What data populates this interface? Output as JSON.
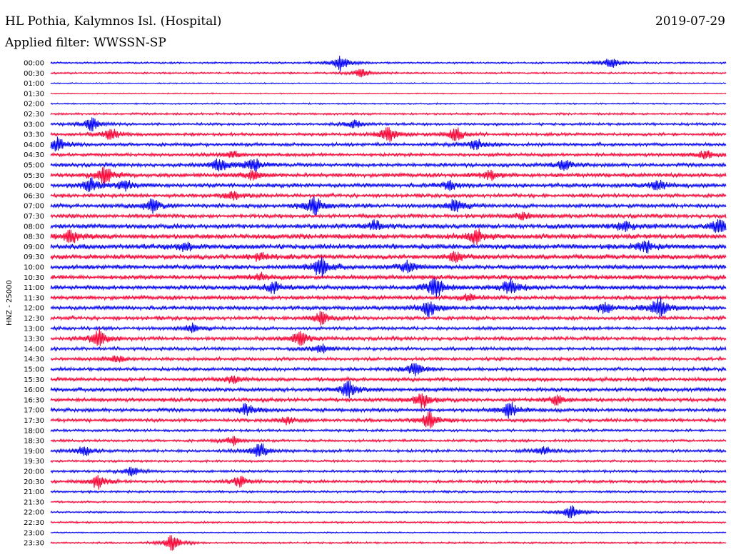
{
  "chart_data": {
    "type": "line",
    "title": "HL Pothia, Kalymnos Isl. (Hospital)",
    "date": "2019-07-29",
    "filter_label": "Applied filter: WWSSN-SP",
    "ylabel": "HNZ - 25000",
    "colors": {
      "blue": "#0000ff",
      "red": "#ff0033"
    },
    "rows": [
      {
        "label": "00:00",
        "color": "blue",
        "amp": 1.0,
        "events": [
          [
            0.43,
            1.0
          ],
          [
            0.83,
            0.7
          ]
        ]
      },
      {
        "label": "00:30",
        "color": "red",
        "amp": 1.0,
        "events": [
          [
            0.46,
            0.5
          ]
        ]
      },
      {
        "label": "01:00",
        "color": "blue",
        "amp": 0.6,
        "events": []
      },
      {
        "label": "01:30",
        "color": "red",
        "amp": 0.6,
        "events": []
      },
      {
        "label": "02:00",
        "color": "blue",
        "amp": 0.8,
        "events": []
      },
      {
        "label": "02:30",
        "color": "red",
        "amp": 1.2,
        "events": []
      },
      {
        "label": "03:00",
        "color": "blue",
        "amp": 1.4,
        "events": [
          [
            0.06,
            0.8
          ],
          [
            0.45,
            0.5
          ]
        ]
      },
      {
        "label": "03:30",
        "color": "red",
        "amp": 1.6,
        "events": [
          [
            0.09,
            0.7
          ],
          [
            0.5,
            0.9
          ],
          [
            0.6,
            0.8
          ]
        ]
      },
      {
        "label": "04:00",
        "color": "blue",
        "amp": 1.8,
        "events": [
          [
            0.01,
            0.8
          ],
          [
            0.63,
            0.6
          ]
        ]
      },
      {
        "label": "04:30",
        "color": "red",
        "amp": 1.8,
        "events": [
          [
            0.27,
            0.4
          ],
          [
            0.97,
            0.5
          ]
        ]
      },
      {
        "label": "05:00",
        "color": "blue",
        "amp": 2.0,
        "events": [
          [
            0.25,
            0.7
          ],
          [
            0.3,
            0.8
          ],
          [
            0.76,
            0.6
          ]
        ]
      },
      {
        "label": "05:30",
        "color": "red",
        "amp": 2.2,
        "events": [
          [
            0.08,
            1.0
          ],
          [
            0.3,
            0.6
          ],
          [
            0.65,
            0.5
          ]
        ]
      },
      {
        "label": "06:00",
        "color": "blue",
        "amp": 2.2,
        "events": [
          [
            0.06,
            0.8
          ],
          [
            0.11,
            0.6
          ],
          [
            0.59,
            0.5
          ],
          [
            0.9,
            0.6
          ]
        ]
      },
      {
        "label": "06:30",
        "color": "red",
        "amp": 2.0,
        "events": [
          [
            0.27,
            0.5
          ]
        ]
      },
      {
        "label": "07:00",
        "color": "blue",
        "amp": 2.2,
        "events": [
          [
            0.15,
            0.8
          ],
          [
            0.39,
            1.0
          ],
          [
            0.6,
            0.8
          ]
        ]
      },
      {
        "label": "07:30",
        "color": "red",
        "amp": 2.2,
        "events": [
          [
            0.7,
            0.4
          ]
        ]
      },
      {
        "label": "08:00",
        "color": "blue",
        "amp": 2.6,
        "events": [
          [
            0.48,
            0.5
          ],
          [
            0.85,
            0.6
          ],
          [
            0.99,
            0.8
          ]
        ]
      },
      {
        "label": "08:30",
        "color": "red",
        "amp": 2.8,
        "events": [
          [
            0.03,
            0.7
          ],
          [
            0.63,
            0.8
          ]
        ]
      },
      {
        "label": "09:00",
        "color": "blue",
        "amp": 2.8,
        "events": [
          [
            0.2,
            0.5
          ],
          [
            0.88,
            0.6
          ]
        ]
      },
      {
        "label": "09:30",
        "color": "red",
        "amp": 2.6,
        "events": [
          [
            0.31,
            0.4
          ],
          [
            0.6,
            0.5
          ]
        ]
      },
      {
        "label": "10:00",
        "color": "blue",
        "amp": 2.4,
        "events": [
          [
            0.4,
            1.2
          ],
          [
            0.53,
            0.8
          ]
        ]
      },
      {
        "label": "10:30",
        "color": "red",
        "amp": 2.4,
        "events": [
          [
            0.31,
            0.4
          ]
        ]
      },
      {
        "label": "11:00",
        "color": "blue",
        "amp": 2.4,
        "events": [
          [
            0.33,
            0.6
          ],
          [
            0.57,
            1.2
          ],
          [
            0.68,
            0.9
          ]
        ]
      },
      {
        "label": "11:30",
        "color": "red",
        "amp": 2.2,
        "events": [
          [
            0.62,
            0.4
          ]
        ]
      },
      {
        "label": "12:00",
        "color": "blue",
        "amp": 2.2,
        "events": [
          [
            0.56,
            1.0
          ],
          [
            0.82,
            0.6
          ],
          [
            0.9,
            1.2
          ]
        ]
      },
      {
        "label": "12:30",
        "color": "red",
        "amp": 2.0,
        "events": [
          [
            0.4,
            0.7
          ]
        ]
      },
      {
        "label": "13:00",
        "color": "blue",
        "amp": 1.8,
        "events": [
          [
            0.21,
            0.5
          ]
        ]
      },
      {
        "label": "13:30",
        "color": "red",
        "amp": 2.0,
        "events": [
          [
            0.07,
            1.1
          ],
          [
            0.37,
            0.8
          ]
        ]
      },
      {
        "label": "14:00",
        "color": "blue",
        "amp": 1.8,
        "events": [
          [
            0.4,
            0.5
          ]
        ]
      },
      {
        "label": "14:30",
        "color": "red",
        "amp": 1.8,
        "events": [
          [
            0.1,
            0.4
          ]
        ]
      },
      {
        "label": "15:00",
        "color": "blue",
        "amp": 1.8,
        "events": [
          [
            0.54,
            0.9
          ]
        ]
      },
      {
        "label": "15:30",
        "color": "red",
        "amp": 2.0,
        "events": [
          [
            0.27,
            0.4
          ]
        ]
      },
      {
        "label": "16:00",
        "color": "blue",
        "amp": 2.2,
        "events": [
          [
            0.44,
            0.9
          ]
        ]
      },
      {
        "label": "16:30",
        "color": "red",
        "amp": 2.0,
        "events": [
          [
            0.55,
            0.9
          ],
          [
            0.75,
            0.6
          ]
        ]
      },
      {
        "label": "17:00",
        "color": "blue",
        "amp": 2.0,
        "events": [
          [
            0.29,
            0.7
          ],
          [
            0.68,
            0.9
          ]
        ]
      },
      {
        "label": "17:30",
        "color": "red",
        "amp": 1.8,
        "events": [
          [
            0.56,
            0.9
          ],
          [
            0.35,
            0.4
          ]
        ]
      },
      {
        "label": "18:00",
        "color": "blue",
        "amp": 1.4,
        "events": []
      },
      {
        "label": "18:30",
        "color": "red",
        "amp": 1.4,
        "events": [
          [
            0.27,
            0.5
          ]
        ]
      },
      {
        "label": "19:00",
        "color": "blue",
        "amp": 1.6,
        "events": [
          [
            0.05,
            0.6
          ],
          [
            0.31,
            0.9
          ],
          [
            0.73,
            0.5
          ]
        ]
      },
      {
        "label": "19:30",
        "color": "red",
        "amp": 1.2,
        "events": []
      },
      {
        "label": "20:00",
        "color": "blue",
        "amp": 1.4,
        "events": [
          [
            0.12,
            0.5
          ]
        ]
      },
      {
        "label": "20:30",
        "color": "red",
        "amp": 1.6,
        "events": [
          [
            0.07,
            0.8
          ],
          [
            0.28,
            0.6
          ]
        ]
      },
      {
        "label": "21:00",
        "color": "blue",
        "amp": 1.2,
        "events": []
      },
      {
        "label": "21:30",
        "color": "red",
        "amp": 1.0,
        "events": []
      },
      {
        "label": "22:00",
        "color": "blue",
        "amp": 1.0,
        "events": [
          [
            0.77,
            0.8
          ]
        ]
      },
      {
        "label": "22:30",
        "color": "red",
        "amp": 1.0,
        "events": []
      },
      {
        "label": "23:00",
        "color": "blue",
        "amp": 0.7,
        "events": []
      },
      {
        "label": "23:30",
        "color": "red",
        "amp": 1.0,
        "events": [
          [
            0.18,
            0.9
          ]
        ]
      }
    ]
  }
}
